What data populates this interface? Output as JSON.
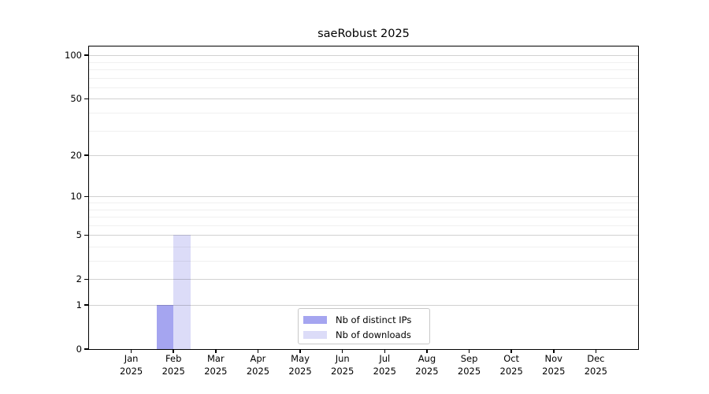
{
  "title": "saeRobust 2025",
  "chart_data": {
    "type": "bar",
    "title": "saeRobust 2025",
    "xlabel": "",
    "ylabel": "",
    "categories": [
      "Jan 2025",
      "Feb 2025",
      "Mar 2025",
      "Apr 2025",
      "May 2025",
      "Jun 2025",
      "Jul 2025",
      "Aug 2025",
      "Sep 2025",
      "Oct 2025",
      "Nov 2025",
      "Dec 2025"
    ],
    "series": [
      {
        "name": "Nb of distinct IPs",
        "color": "#a5a5f0",
        "values": [
          0,
          1,
          0,
          0,
          0,
          0,
          0,
          0,
          0,
          0,
          0,
          0
        ]
      },
      {
        "name": "Nb of downloads",
        "color": "#dcdcf8",
        "values": [
          0,
          5,
          0,
          0,
          0,
          0,
          0,
          0,
          0,
          0,
          0,
          0
        ]
      }
    ],
    "y_scale": "log10(1+x)",
    "ylim": [
      0,
      115
    ],
    "y_ticks": [
      0,
      1,
      2,
      5,
      10,
      20,
      50,
      100
    ],
    "y_minor_gridlines": [
      3,
      4,
      6,
      7,
      8,
      9,
      30,
      40,
      60,
      70,
      80,
      90
    ],
    "grid": "horizontal",
    "legend_position": "lower center"
  }
}
